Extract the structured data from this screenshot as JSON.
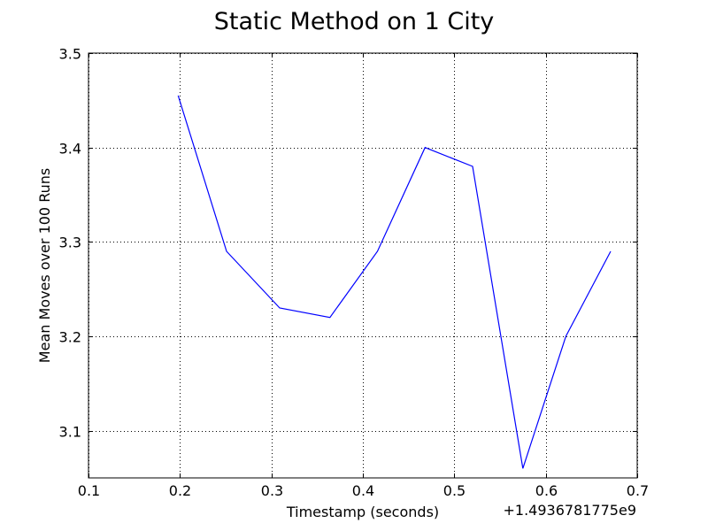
{
  "chart_data": {
    "type": "line",
    "title": "Static Method on 1 City",
    "xlabel": "Timestamp (seconds)",
    "ylabel": "Mean Moves over 100 Runs",
    "x_offset_label": "+1.4936781775e9",
    "xlim": [
      0.1,
      0.7
    ],
    "ylim": [
      3.05,
      3.5
    ],
    "x_ticks": [
      0.1,
      0.2,
      0.3,
      0.4,
      0.5,
      0.6,
      0.7
    ],
    "x_tick_labels": [
      "0.1",
      "0.2",
      "0.3",
      "0.4",
      "0.5",
      "0.6",
      "0.7"
    ],
    "y_ticks": [
      3.1,
      3.2,
      3.3,
      3.4,
      3.5
    ],
    "y_tick_labels": [
      "3.1",
      "3.2",
      "3.3",
      "3.4",
      "3.5"
    ],
    "grid": true,
    "series": [
      {
        "color": "#0000ff",
        "x": [
          0.198,
          0.251,
          0.309,
          0.364,
          0.416,
          0.468,
          0.52,
          0.575,
          0.622,
          0.671
        ],
        "y": [
          3.455,
          3.29,
          3.23,
          3.22,
          3.29,
          3.4,
          3.38,
          3.06,
          3.2,
          3.29
        ]
      }
    ]
  }
}
